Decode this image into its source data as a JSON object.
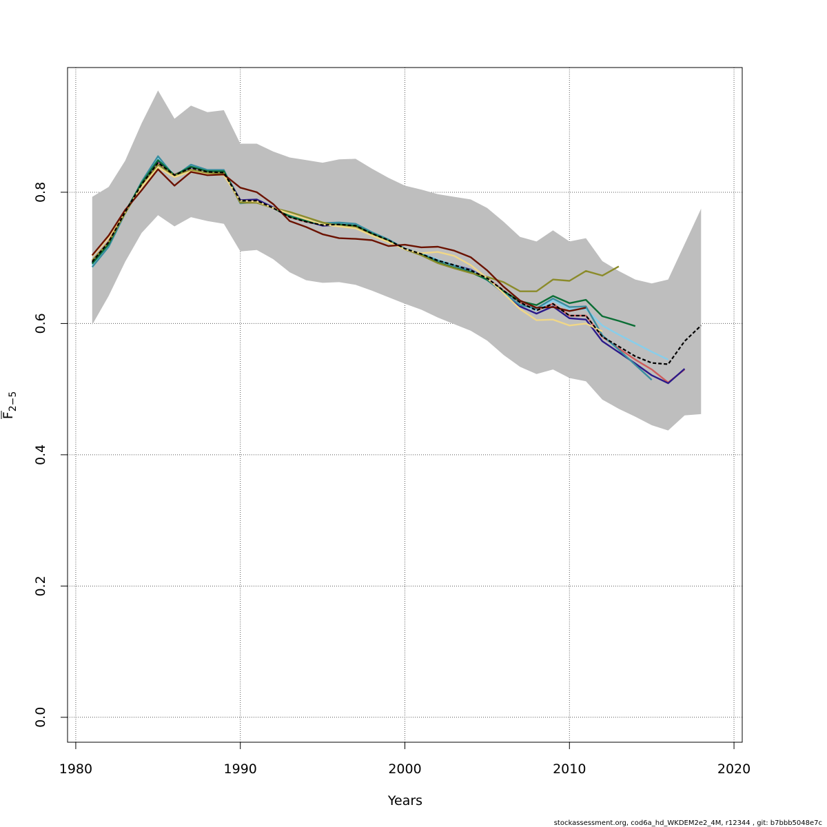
{
  "chart_data": {
    "type": "line",
    "xlabel": "Years",
    "ylabel_main": "F",
    "ylabel_sub": "2−5",
    "xlim": [
      1979.5,
      2020.5
    ],
    "ylim": [
      -0.038,
      0.99
    ],
    "x_ticks": [
      1980,
      1990,
      2000,
      2010,
      2020
    ],
    "y_ticks": [
      0.0,
      0.2,
      0.4,
      0.6,
      0.8
    ],
    "y_tick_labels": [
      "0.0",
      "0.2",
      "0.4",
      "0.6",
      "0.8"
    ],
    "grid": true,
    "footer": "stockassessment.org, cod6a_hd_WKDEM2e2_4M, r12344 , git: b7bbb5048e7c",
    "colors": {
      "band": "#bebebe",
      "grid": "#555555",
      "axis": "#000000"
    },
    "confidence_band": {
      "x": [
        1981,
        1982,
        1983,
        1984,
        1985,
        1986,
        1987,
        1988,
        1989,
        1990,
        1991,
        1992,
        1993,
        1994,
        1995,
        1996,
        1997,
        1998,
        1999,
        2000,
        2001,
        2002,
        2003,
        2004,
        2005,
        2006,
        2007,
        2008,
        2009,
        2010,
        2011,
        2012,
        2013,
        2014,
        2015,
        2016,
        2017,
        2018
      ],
      "upper": [
        0.793,
        0.808,
        0.848,
        0.905,
        0.955,
        0.912,
        0.932,
        0.922,
        0.925,
        0.874,
        0.874,
        0.862,
        0.853,
        0.849,
        0.845,
        0.85,
        0.851,
        0.836,
        0.822,
        0.81,
        0.804,
        0.797,
        0.793,
        0.789,
        0.776,
        0.755,
        0.732,
        0.725,
        0.742,
        0.725,
        0.73,
        0.695,
        0.68,
        0.667,
        0.661,
        0.667,
        0.721,
        0.775
      ],
      "lower": [
        0.598,
        0.642,
        0.694,
        0.738,
        0.765,
        0.748,
        0.762,
        0.756,
        0.752,
        0.71,
        0.712,
        0.698,
        0.678,
        0.666,
        0.662,
        0.663,
        0.659,
        0.65,
        0.64,
        0.63,
        0.621,
        0.609,
        0.599,
        0.589,
        0.574,
        0.552,
        0.534,
        0.523,
        0.53,
        0.517,
        0.512,
        0.484,
        0.47,
        0.458,
        0.445,
        0.437,
        0.46,
        0.462
      ]
    },
    "series": [
      {
        "color": "#000000",
        "dashed": true,
        "x": [
          1981,
          1982,
          1983,
          1984,
          1985,
          1986,
          1987,
          1988,
          1989,
          1990,
          1991,
          1992,
          1993,
          1994,
          1995,
          1996,
          1997,
          1998,
          1999,
          2000,
          2001,
          2002,
          2003,
          2004,
          2005,
          2006,
          2007,
          2008,
          2009,
          2010,
          2011,
          2012,
          2013,
          2014,
          2015,
          2016,
          2017,
          2018
        ],
        "values": [
          0.694,
          0.724,
          0.77,
          0.812,
          0.845,
          0.826,
          0.837,
          0.831,
          0.83,
          0.787,
          0.787,
          0.776,
          0.762,
          0.755,
          0.75,
          0.751,
          0.749,
          0.737,
          0.727,
          0.714,
          0.706,
          0.696,
          0.689,
          0.681,
          0.669,
          0.65,
          0.632,
          0.62,
          0.63,
          0.612,
          0.612,
          0.58,
          0.565,
          0.55,
          0.54,
          0.538,
          0.573,
          0.597
        ]
      },
      {
        "color": "#cd5c5c",
        "x": [
          1981,
          1982,
          1983,
          1984,
          1985,
          1986,
          1987,
          1988,
          1989,
          1990,
          1991,
          1992,
          1993,
          1994,
          1995,
          1996,
          1997,
          1998,
          1999,
          2000,
          2001,
          2002,
          2003,
          2004,
          2005,
          2006,
          2007,
          2008,
          2009,
          2010,
          2011,
          2012,
          2013,
          2014,
          2015,
          2016,
          2017
        ],
        "values": [
          0.696,
          0.725,
          0.771,
          0.812,
          0.846,
          0.827,
          0.838,
          0.832,
          0.831,
          0.787,
          0.787,
          0.776,
          0.762,
          0.755,
          0.75,
          0.751,
          0.749,
          0.737,
          0.727,
          0.714,
          0.706,
          0.696,
          0.689,
          0.681,
          0.669,
          0.65,
          0.632,
          0.62,
          0.63,
          0.612,
          0.612,
          0.58,
          0.562,
          0.545,
          0.53,
          0.51,
          0.53
        ]
      },
      {
        "color": "#2b1a8a",
        "x": [
          1981,
          1982,
          1983,
          1984,
          1985,
          1986,
          1987,
          1988,
          1989,
          1990,
          1991,
          1992,
          1993,
          1994,
          1995,
          1996,
          1997,
          1998,
          1999,
          2000,
          2001,
          2002,
          2003,
          2004,
          2005,
          2006,
          2007,
          2008,
          2009,
          2010,
          2011,
          2012,
          2013,
          2014,
          2015,
          2016,
          2017
        ],
        "values": [
          0.692,
          0.722,
          0.769,
          0.812,
          0.848,
          0.826,
          0.838,
          0.833,
          0.832,
          0.788,
          0.789,
          0.777,
          0.763,
          0.756,
          0.749,
          0.75,
          0.748,
          0.736,
          0.727,
          0.713,
          0.705,
          0.696,
          0.689,
          0.682,
          0.668,
          0.646,
          0.626,
          0.615,
          0.626,
          0.608,
          0.606,
          0.573,
          0.556,
          0.539,
          0.521,
          0.509,
          0.531
        ]
      },
      {
        "color": "#87ceeb",
        "x": [
          1981,
          1982,
          1983,
          1984,
          1985,
          1986,
          1987,
          1988,
          1989,
          1990,
          1991,
          1992,
          1993,
          1994,
          1995,
          1996,
          1997,
          1998,
          1999,
          2000,
          2001,
          2002,
          2003,
          2004,
          2005,
          2006,
          2007,
          2008,
          2009,
          2010,
          2011,
          2012,
          2013,
          2014,
          2015,
          2016
        ],
        "values": [
          0.689,
          0.72,
          0.768,
          0.815,
          0.852,
          0.826,
          0.84,
          0.833,
          0.832,
          0.785,
          0.786,
          0.776,
          0.763,
          0.756,
          0.752,
          0.753,
          0.751,
          0.739,
          0.728,
          0.714,
          0.707,
          0.697,
          0.689,
          0.681,
          0.668,
          0.647,
          0.629,
          0.62,
          0.635,
          0.622,
          0.622,
          0.597,
          0.583,
          0.57,
          0.557,
          0.545
        ]
      },
      {
        "color": "#3a8ea0",
        "x": [
          1981,
          1982,
          1983,
          1984,
          1985,
          1986,
          1987,
          1988,
          1989,
          1990,
          1991,
          1992,
          1993,
          1994,
          1995,
          1996,
          1997,
          1998,
          1999,
          2000,
          2001,
          2002,
          2003,
          2004,
          2005,
          2006,
          2007,
          2008,
          2009,
          2010,
          2011,
          2012,
          2013,
          2014,
          2015
        ],
        "values": [
          0.686,
          0.717,
          0.768,
          0.816,
          0.855,
          0.824,
          0.842,
          0.834,
          0.834,
          0.783,
          0.785,
          0.776,
          0.765,
          0.758,
          0.753,
          0.754,
          0.752,
          0.739,
          0.728,
          0.714,
          0.706,
          0.696,
          0.688,
          0.68,
          0.666,
          0.647,
          0.628,
          0.623,
          0.638,
          0.625,
          0.626,
          0.582,
          0.56,
          0.537,
          0.514
        ]
      },
      {
        "color": "#0b6e35",
        "x": [
          1981,
          1982,
          1983,
          1984,
          1985,
          1986,
          1987,
          1988,
          1989,
          1990,
          1991,
          1992,
          1993,
          1994,
          1995,
          1996,
          1997,
          1998,
          1999,
          2000,
          2001,
          2002,
          2003,
          2004,
          2005,
          2006,
          2007,
          2008,
          2009,
          2010,
          2011,
          2012,
          2013,
          2014
        ],
        "values": [
          0.691,
          0.721,
          0.77,
          0.814,
          0.849,
          0.826,
          0.839,
          0.832,
          0.832,
          0.786,
          0.786,
          0.776,
          0.763,
          0.756,
          0.751,
          0.751,
          0.749,
          0.737,
          0.726,
          0.713,
          0.705,
          0.693,
          0.685,
          0.678,
          0.667,
          0.649,
          0.634,
          0.628,
          0.642,
          0.631,
          0.636,
          0.611,
          0.604,
          0.596
        ]
      },
      {
        "color": "#8b8b2a",
        "x": [
          1981,
          1982,
          1983,
          1984,
          1985,
          1986,
          1987,
          1988,
          1989,
          1990,
          1991,
          1992,
          1993,
          1994,
          1995,
          1996,
          1997,
          1998,
          1999,
          2000,
          2001,
          2002,
          2003,
          2004,
          2005,
          2006,
          2007,
          2008,
          2009,
          2010,
          2011,
          2012,
          2013
        ],
        "values": [
          0.696,
          0.724,
          0.768,
          0.81,
          0.842,
          0.825,
          0.834,
          0.829,
          0.829,
          0.784,
          0.784,
          0.776,
          0.77,
          0.762,
          0.754,
          0.749,
          0.747,
          0.735,
          0.725,
          0.713,
          0.704,
          0.692,
          0.684,
          0.677,
          0.671,
          0.663,
          0.649,
          0.649,
          0.667,
          0.665,
          0.68,
          0.673,
          0.687
        ]
      },
      {
        "color": "#f0d787",
        "x": [
          1981,
          1982,
          1983,
          1984,
          1985,
          1986,
          1987,
          1988,
          1989,
          1990,
          1991,
          1992,
          1993,
          1994,
          1995,
          1996,
          1997,
          1998,
          1999,
          2000,
          2001,
          2002,
          2003,
          2004,
          2005,
          2006,
          2007,
          2008,
          2009,
          2010,
          2011,
          2012
        ],
        "values": [
          0.703,
          0.731,
          0.771,
          0.808,
          0.838,
          0.823,
          0.832,
          0.827,
          0.826,
          0.787,
          0.786,
          0.776,
          0.767,
          0.759,
          0.751,
          0.748,
          0.745,
          0.734,
          0.724,
          0.713,
          0.707,
          0.709,
          0.703,
          0.689,
          0.669,
          0.646,
          0.622,
          0.605,
          0.606,
          0.597,
          0.6,
          0.588
        ]
      },
      {
        "color": "#6b1200",
        "x": [
          1981,
          1982,
          1983,
          1984,
          1985,
          1986,
          1987,
          1988,
          1989,
          1990,
          1991,
          1992,
          1993,
          1994,
          1995,
          1996,
          1997,
          1998,
          1999,
          2000,
          2001,
          2002,
          2003,
          2004,
          2005,
          2006,
          2007,
          2008,
          2009,
          2010,
          2011
        ],
        "values": [
          0.704,
          0.734,
          0.773,
          0.803,
          0.835,
          0.81,
          0.831,
          0.826,
          0.827,
          0.807,
          0.8,
          0.782,
          0.756,
          0.747,
          0.736,
          0.73,
          0.729,
          0.727,
          0.718,
          0.72,
          0.716,
          0.717,
          0.711,
          0.701,
          0.681,
          0.656,
          0.635,
          0.624,
          0.625,
          0.619,
          0.624
        ]
      }
    ]
  }
}
